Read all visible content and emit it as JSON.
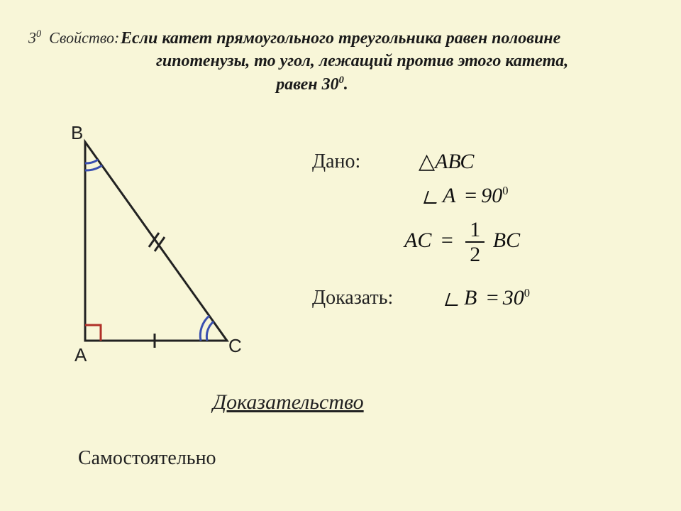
{
  "property": {
    "num": "3",
    "sup": "0",
    "word": "Свойство:"
  },
  "theorem": {
    "line1": "Если катет прямоугольного треугольника равен половине",
    "line2": "гипотенузы, то угол, лежащий против этого катета,",
    "line3_prefix": "равен 30",
    "line3_sup": "0",
    "line3_suffix": "."
  },
  "labels": {
    "A": "А",
    "B": "В",
    "C": "С"
  },
  "given": {
    "heading": "Дано:",
    "triangle": "АВС",
    "angle_var": "A",
    "angle_val": "90",
    "angle_sup": "0",
    "eq_left": "AC",
    "eq_frac_num": "1",
    "eq_frac_den": "2",
    "eq_right": "BC"
  },
  "prove": {
    "heading": "Доказать:",
    "var": "B",
    "val": "30",
    "sup": "0"
  },
  "proof_heading": "Доказательство",
  "self": "Самостоятельно",
  "colors": {
    "bg": "#f8f6d8",
    "stroke": "#222222",
    "right_angle": "#b03028",
    "arc": "#3a4fb0"
  },
  "diagram": {
    "A": [
      60,
      300
    ],
    "B": [
      60,
      20
    ],
    "C": [
      260,
      300
    ],
    "stroke_width": 3,
    "right_angle_size": 22,
    "tick_len": 10
  }
}
